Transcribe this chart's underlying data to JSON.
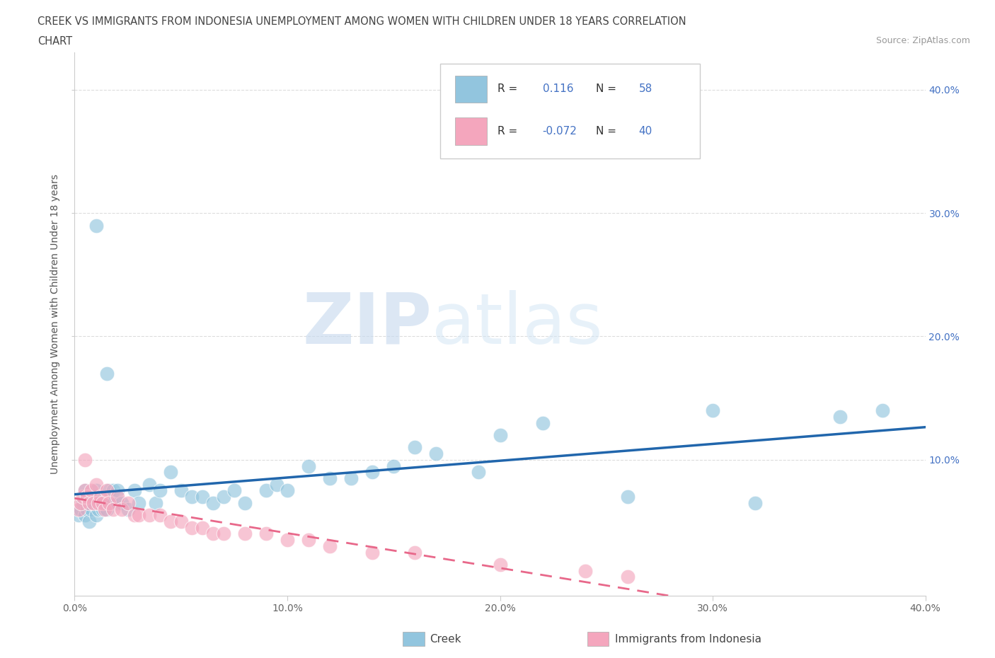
{
  "title_line1": "CREEK VS IMMIGRANTS FROM INDONESIA UNEMPLOYMENT AMONG WOMEN WITH CHILDREN UNDER 18 YEARS CORRELATION",
  "title_line2": "CHART",
  "source": "Source: ZipAtlas.com",
  "ylabel": "Unemployment Among Women with Children Under 18 years",
  "xlim": [
    0.0,
    0.4
  ],
  "ylim": [
    -0.01,
    0.43
  ],
  "yticks": [
    0.1,
    0.2,
    0.3,
    0.4
  ],
  "xticks": [
    0.0,
    0.1,
    0.2,
    0.3,
    0.4
  ],
  "ytick_labels": [
    "10.0%",
    "20.0%",
    "30.0%",
    "40.0%"
  ],
  "xtick_labels": [
    "0.0%",
    "10.0%",
    "20.0%",
    "30.0%",
    "40.0%"
  ],
  "creek_color": "#92c5de",
  "indonesia_color": "#f4a6bd",
  "creek_line_color": "#2166ac",
  "indonesia_line_color": "#e8688a",
  "legend_creek_label": "Creek",
  "legend_indonesia_label": "Immigrants from Indonesia",
  "creek_R": 0.116,
  "creek_N": 58,
  "indonesia_R": -0.072,
  "indonesia_N": 40,
  "watermark_zip": "ZIP",
  "watermark_atlas": "atlas",
  "creek_x": [
    0.002,
    0.003,
    0.004,
    0.005,
    0.005,
    0.006,
    0.007,
    0.007,
    0.008,
    0.008,
    0.009,
    0.01,
    0.01,
    0.011,
    0.012,
    0.013,
    0.014,
    0.015,
    0.016,
    0.017,
    0.018,
    0.02,
    0.02,
    0.022,
    0.025,
    0.028,
    0.03,
    0.035,
    0.038,
    0.04,
    0.045,
    0.05,
    0.055,
    0.06,
    0.065,
    0.07,
    0.075,
    0.08,
    0.09,
    0.095,
    0.1,
    0.11,
    0.12,
    0.13,
    0.14,
    0.15,
    0.16,
    0.17,
    0.19,
    0.2,
    0.22,
    0.26,
    0.3,
    0.32,
    0.36,
    0.38,
    0.01,
    0.015
  ],
  "creek_y": [
    0.055,
    0.06,
    0.065,
    0.055,
    0.075,
    0.06,
    0.05,
    0.065,
    0.06,
    0.07,
    0.065,
    0.055,
    0.075,
    0.06,
    0.065,
    0.06,
    0.065,
    0.06,
    0.075,
    0.065,
    0.075,
    0.065,
    0.075,
    0.065,
    0.06,
    0.075,
    0.065,
    0.08,
    0.065,
    0.075,
    0.09,
    0.075,
    0.07,
    0.07,
    0.065,
    0.07,
    0.075,
    0.065,
    0.075,
    0.08,
    0.075,
    0.095,
    0.085,
    0.085,
    0.09,
    0.095,
    0.11,
    0.105,
    0.09,
    0.12,
    0.13,
    0.07,
    0.14,
    0.065,
    0.135,
    0.14,
    0.29,
    0.17
  ],
  "indonesia_x": [
    0.002,
    0.003,
    0.004,
    0.005,
    0.005,
    0.006,
    0.007,
    0.008,
    0.009,
    0.01,
    0.011,
    0.012,
    0.013,
    0.014,
    0.015,
    0.016,
    0.018,
    0.02,
    0.022,
    0.025,
    0.028,
    0.03,
    0.035,
    0.04,
    0.045,
    0.05,
    0.055,
    0.06,
    0.065,
    0.07,
    0.08,
    0.09,
    0.1,
    0.11,
    0.12,
    0.14,
    0.16,
    0.2,
    0.24,
    0.26
  ],
  "indonesia_y": [
    0.06,
    0.065,
    0.07,
    0.075,
    0.1,
    0.07,
    0.065,
    0.075,
    0.065,
    0.08,
    0.065,
    0.07,
    0.065,
    0.06,
    0.075,
    0.065,
    0.06,
    0.07,
    0.06,
    0.065,
    0.055,
    0.055,
    0.055,
    0.055,
    0.05,
    0.05,
    0.045,
    0.045,
    0.04,
    0.04,
    0.04,
    0.04,
    0.035,
    0.035,
    0.03,
    0.025,
    0.025,
    0.015,
    0.01,
    0.005
  ]
}
